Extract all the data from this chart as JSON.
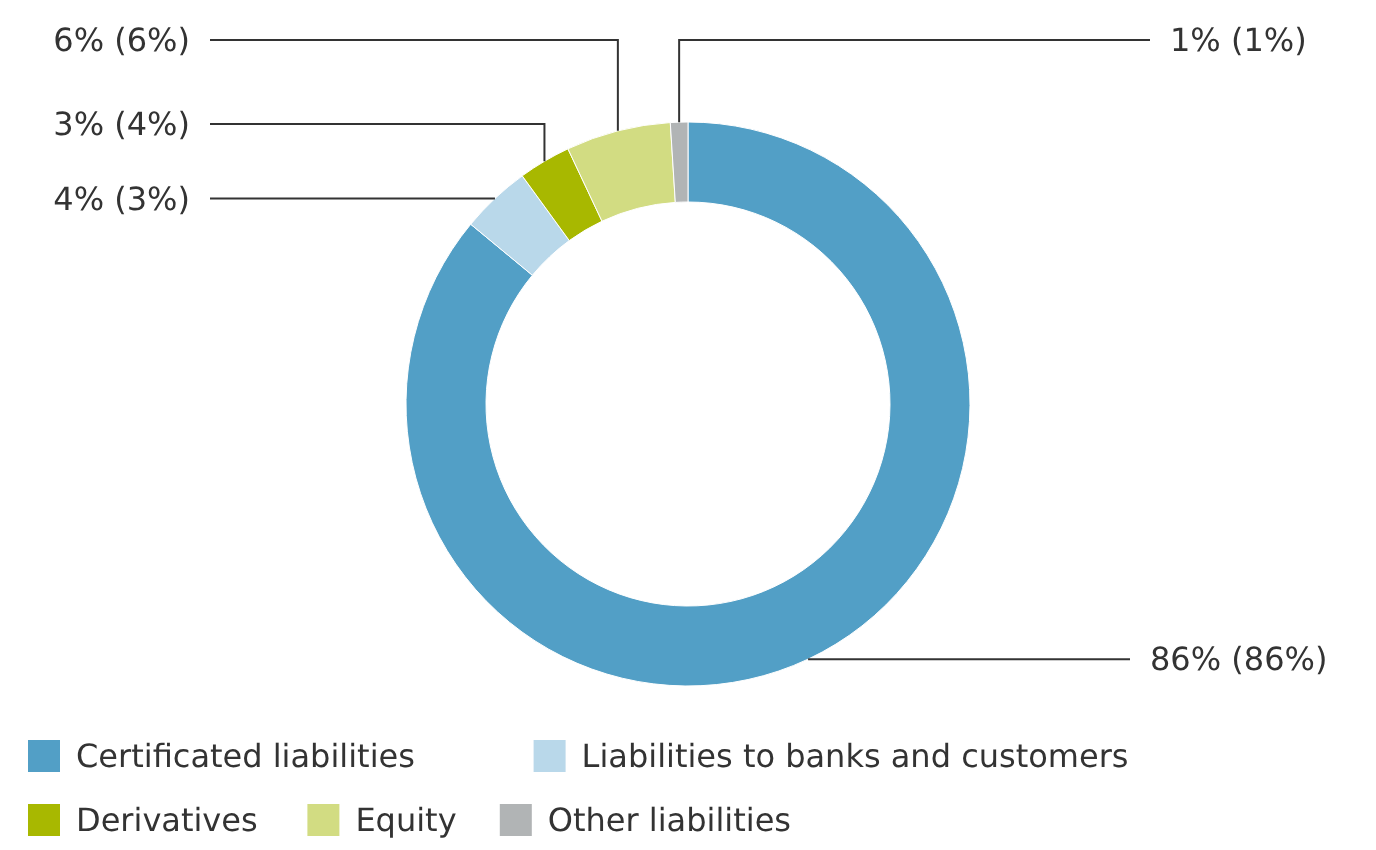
{
  "chart_data": {
    "type": "donut",
    "categories": [
      "Certificated liabilities",
      "Liabilities to banks and customers",
      "Derivatives",
      "Equity",
      "Other liabilities"
    ],
    "values": [
      86,
      4,
      3,
      6,
      1
    ],
    "colors": [
      "#529fc6",
      "#b9d8ea",
      "#a8b800",
      "#d2dc82",
      "#b1b4b5"
    ],
    "value_labels": [
      "86% (86%)",
      "4% (3%)",
      "3% (4%)",
      "6% (6%)",
      "1% (1%)"
    ],
    "legend": "bottom"
  }
}
